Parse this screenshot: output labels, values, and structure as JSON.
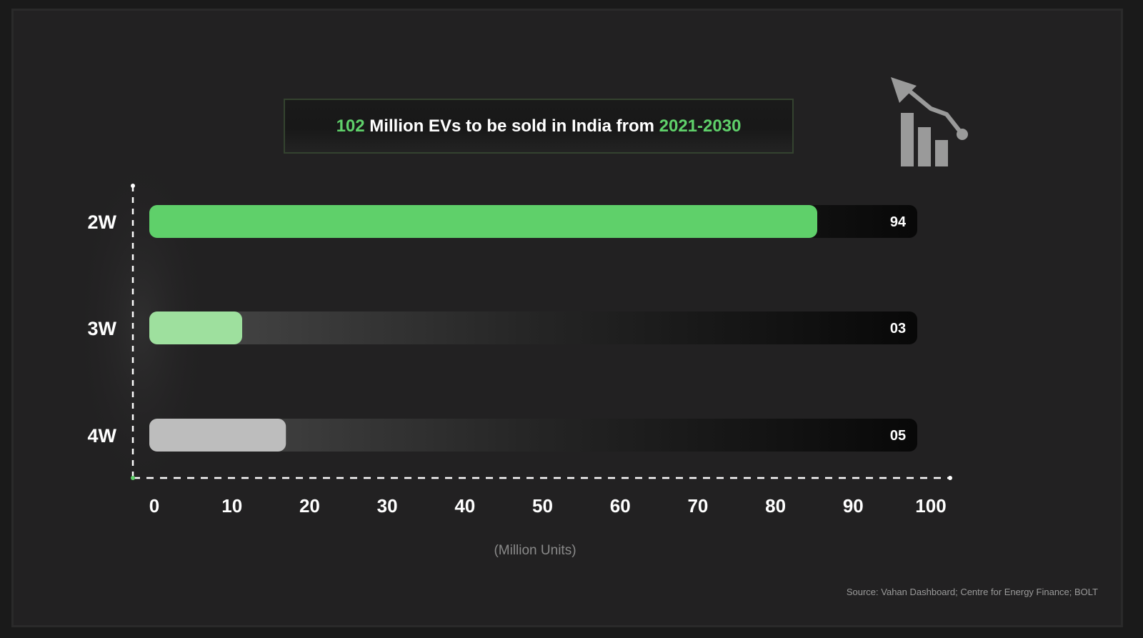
{
  "title": {
    "highlight_number": "102",
    "middle_text": "Million EVs to be sold in India from",
    "highlight_years": "2021-2030"
  },
  "colors": {
    "background": "#222122",
    "accent_green": "#5fd06a",
    "light_green": "#9ee09e",
    "grey": "#bdbdbd",
    "track": "#0a0a0a"
  },
  "icon": {
    "name": "bar-chart-trend-arrow-icon"
  },
  "chart_data": {
    "type": "bar",
    "orientation": "horizontal",
    "title": "102 Million EVs to be sold in India from 2021-2030",
    "categories": [
      "2W",
      "3W",
      "4W"
    ],
    "values": [
      94,
      3,
      5
    ],
    "value_labels": [
      "94",
      "03",
      "05"
    ],
    "bar_colors": [
      "#5fd06a",
      "#9ee09e",
      "#bdbdbd"
    ],
    "xlim": [
      0,
      100
    ],
    "xticks": [
      0,
      10,
      20,
      30,
      40,
      50,
      60,
      70,
      80,
      90,
      100
    ],
    "xlabel": "(Million Units)",
    "ylabel": "",
    "grid": false,
    "legend": "none"
  },
  "source": "Source: Vahan Dashboard; Centre for Energy Finance; BOLT"
}
